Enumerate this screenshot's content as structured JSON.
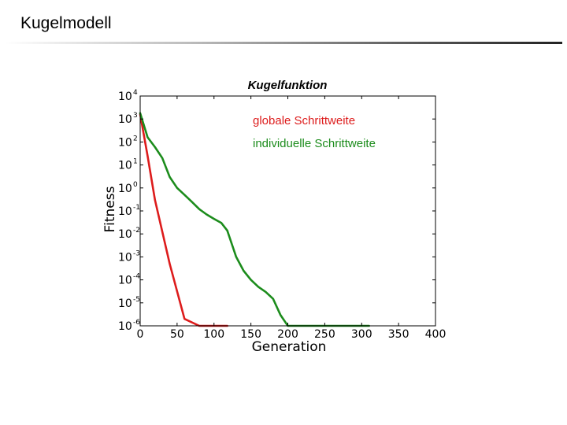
{
  "slide": {
    "title": "Kugelmodell"
  },
  "chart_data": {
    "type": "line",
    "title": "Kugelfunktion",
    "xlabel": "Generation",
    "ylabel": "Fitness",
    "xlim": [
      0,
      400
    ],
    "ylim_log10": [
      -6,
      4
    ],
    "yscale": "log",
    "grid": false,
    "legend_placement": "top-right",
    "x_ticks": [
      "0",
      "50",
      "100",
      "150",
      "200",
      "250",
      "300",
      "350",
      "400"
    ],
    "y_ticks": [
      {
        "base": "10",
        "exp": "4",
        "log10": 4
      },
      {
        "base": "10",
        "exp": "3",
        "log10": 3
      },
      {
        "base": "10",
        "exp": "2",
        "log10": 2
      },
      {
        "base": "10",
        "exp": "1",
        "log10": 1
      },
      {
        "base": "10",
        "exp": "0",
        "log10": 0
      },
      {
        "base": "10",
        "exp": "-1",
        "log10": -1
      },
      {
        "base": "10",
        "exp": "-2",
        "log10": -2
      },
      {
        "base": "10",
        "exp": "-3",
        "log10": -3
      },
      {
        "base": "10",
        "exp": "-4",
        "log10": -4
      },
      {
        "base": "10",
        "exp": "-5",
        "log10": -5
      },
      {
        "base": "10",
        "exp": "-6",
        "log10": -6
      }
    ],
    "series": [
      {
        "name": "globale Schrittweite",
        "color": "#dd1c1c",
        "x": [
          0,
          10,
          20,
          40,
          60,
          80,
          100,
          118
        ],
        "y": [
          1600,
          25,
          0.3,
          0.0005,
          2e-06,
          4e-08,
          1e-09,
          1e-10
        ]
      },
      {
        "name": "individuelle Schrittweite",
        "color": "#1c8c1c",
        "x": [
          0,
          10,
          20,
          30,
          40,
          50,
          60,
          70,
          80,
          90,
          100,
          110,
          118,
          125,
          130,
          140,
          150,
          160,
          170,
          180,
          190,
          200,
          210,
          220,
          230,
          240,
          250,
          260,
          270,
          280,
          290,
          300,
          310
        ],
        "y": [
          1800,
          160,
          60,
          20,
          3,
          1,
          0.5,
          0.25,
          0.12,
          0.07,
          0.045,
          0.03,
          0.014,
          0.003,
          0.001,
          0.00025,
          0.0001,
          5e-05,
          3e-05,
          1.5e-05,
          3e-06,
          2e-07,
          1e-07,
          1.8e-08,
          1e-08,
          6e-09,
          3e-09,
          2e-09,
          1.8e-09,
          1.8e-09,
          1.8e-09,
          1.8e-09,
          1e-10
        ]
      }
    ]
  }
}
